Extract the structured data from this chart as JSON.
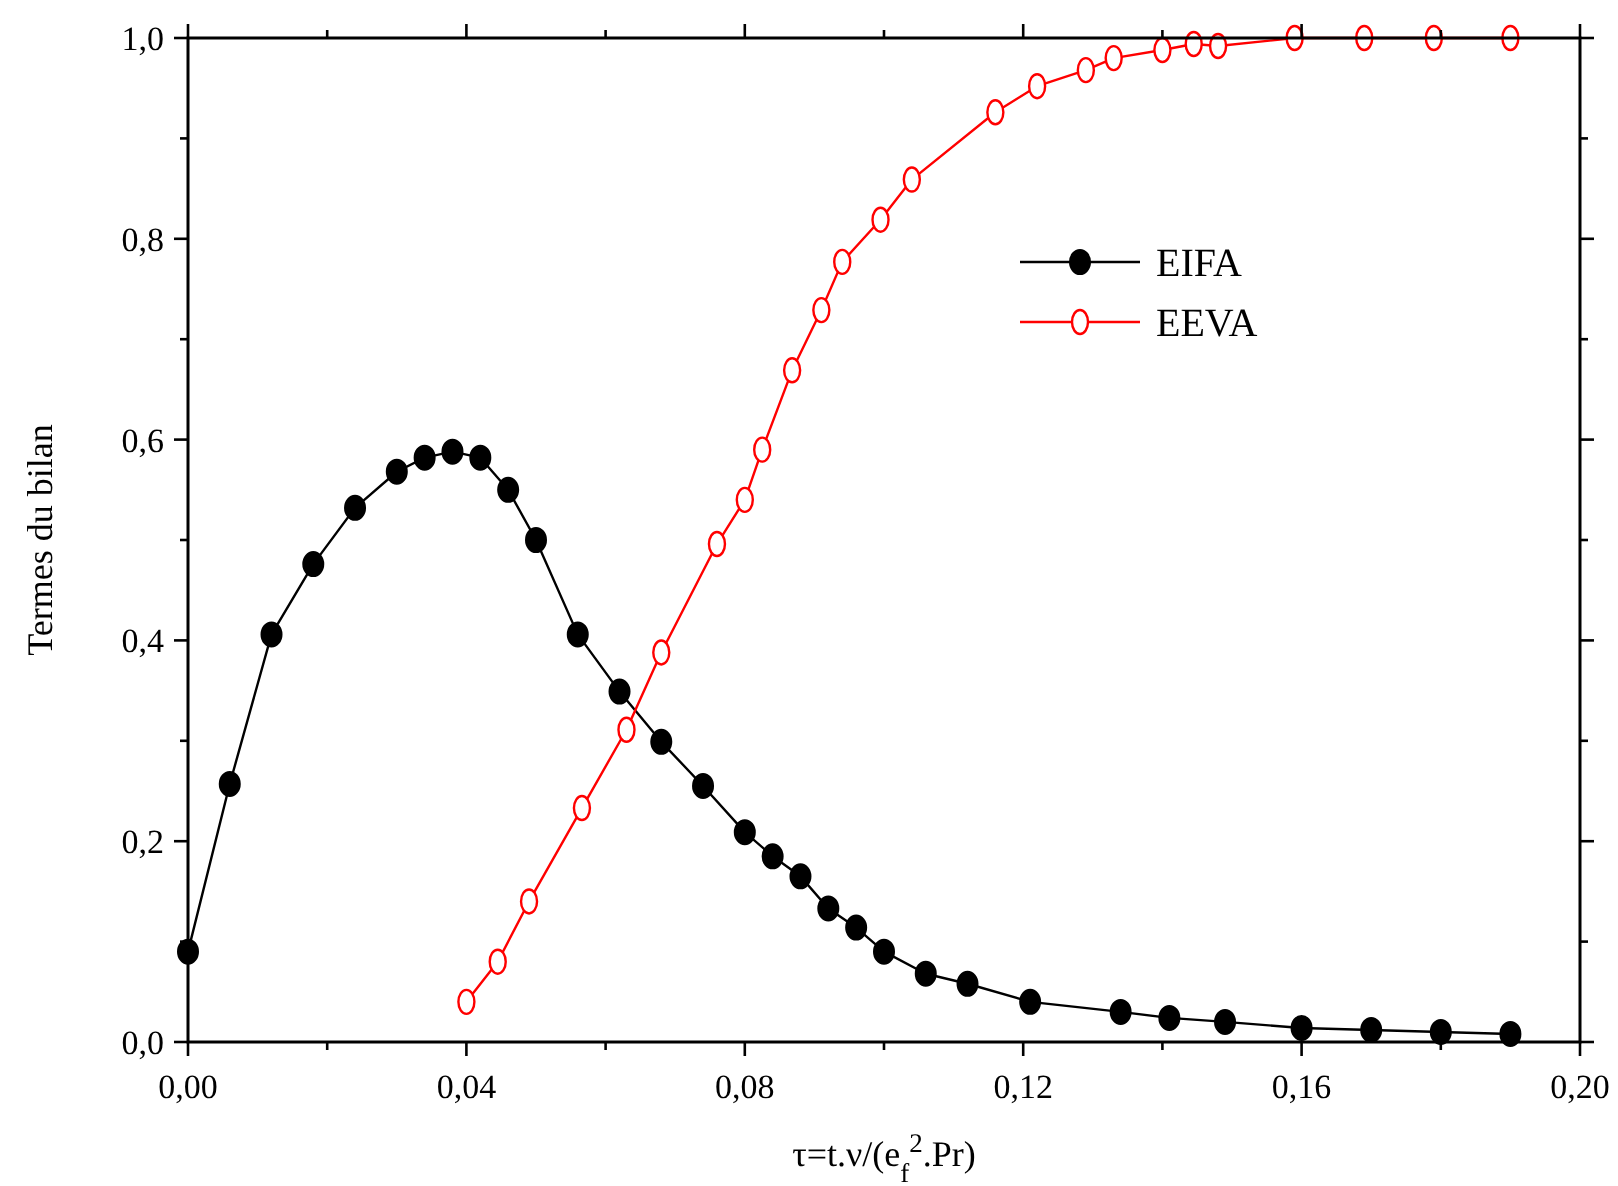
{
  "chart_data": {
    "type": "line",
    "xlabel": "τ=t.ν/(e$_{f}$$^{2}$.Pr)",
    "ylabel": "Termes du bilan",
    "xlim": [
      0,
      0.2
    ],
    "ylim": [
      0,
      1
    ],
    "xticks": [
      {
        "value": 0,
        "label": "0,00"
      },
      {
        "value": 0.02,
        "label": null
      },
      {
        "value": 0.04,
        "label": "0,04"
      },
      {
        "value": 0.06,
        "label": null
      },
      {
        "value": 0.08,
        "label": "0,08"
      },
      {
        "value": 0.1,
        "label": null
      },
      {
        "value": 0.12,
        "label": "0,12"
      },
      {
        "value": 0.14,
        "label": null
      },
      {
        "value": 0.16,
        "label": "0,16"
      },
      {
        "value": 0.18,
        "label": null
      },
      {
        "value": 0.2,
        "label": "0,20"
      }
    ],
    "yticks": [
      {
        "value": 0,
        "label": "0,0"
      },
      {
        "value": 0.1,
        "label": null
      },
      {
        "value": 0.2,
        "label": "0,2"
      },
      {
        "value": 0.3,
        "label": null
      },
      {
        "value": 0.4,
        "label": "0,4"
      },
      {
        "value": 0.5,
        "label": null
      },
      {
        "value": 0.6,
        "label": "0,6"
      },
      {
        "value": 0.7,
        "label": null
      },
      {
        "value": 0.8,
        "label": "0,8"
      },
      {
        "value": 0.9,
        "label": null
      },
      {
        "value": 1,
        "label": "1,0"
      }
    ],
    "legend": "top right",
    "grid": false,
    "line_style": "solid",
    "series": [
      {
        "name": "EIFA",
        "color": "#000000",
        "marker": "circle",
        "x": [
          0,
          0.006,
          0.012,
          0.018,
          0.024,
          0.03,
          0.034,
          0.038,
          0.042,
          0.046,
          0.05,
          0.056,
          0.062,
          0.068,
          0.074,
          0.08,
          0.084,
          0.088,
          0.092,
          0.096,
          0.1,
          0.106,
          0.112,
          0.121,
          0.134,
          0.141,
          0.149,
          0.16,
          0.17,
          0.18,
          0.19
        ],
        "values": [
          0.09,
          0.257,
          0.406,
          0.476,
          0.532,
          0.568,
          0.582,
          0.588,
          0.582,
          0.55,
          0.5,
          0.406,
          0.349,
          0.299,
          0.255,
          0.209,
          0.185,
          0.165,
          0.133,
          0.114,
          0.09,
          0.068,
          0.058,
          0.04,
          0.03,
          0.024,
          0.02,
          0.014,
          0.012,
          0.01,
          0.008
        ]
      },
      {
        "name": "EEVA",
        "color": "#ff0000",
        "marker": "circle_open",
        "x": [
          0.04,
          0.0445,
          0.049,
          0.0566,
          0.063,
          0.068,
          0.076,
          0.08,
          0.0825,
          0.0868,
          0.091,
          0.094,
          0.0995,
          0.104,
          0.116,
          0.122,
          0.129,
          0.133,
          0.14,
          0.1445,
          0.148,
          0.159,
          0.169,
          0.179,
          0.19
        ],
        "values": [
          0.04,
          0.08,
          0.14,
          0.233,
          0.311,
          0.388,
          0.496,
          0.54,
          0.59,
          0.669,
          0.729,
          0.777,
          0.819,
          0.859,
          0.926,
          0.952,
          0.968,
          0.98,
          0.988,
          0.994,
          0.992,
          1,
          1,
          1,
          1
        ]
      }
    ]
  }
}
